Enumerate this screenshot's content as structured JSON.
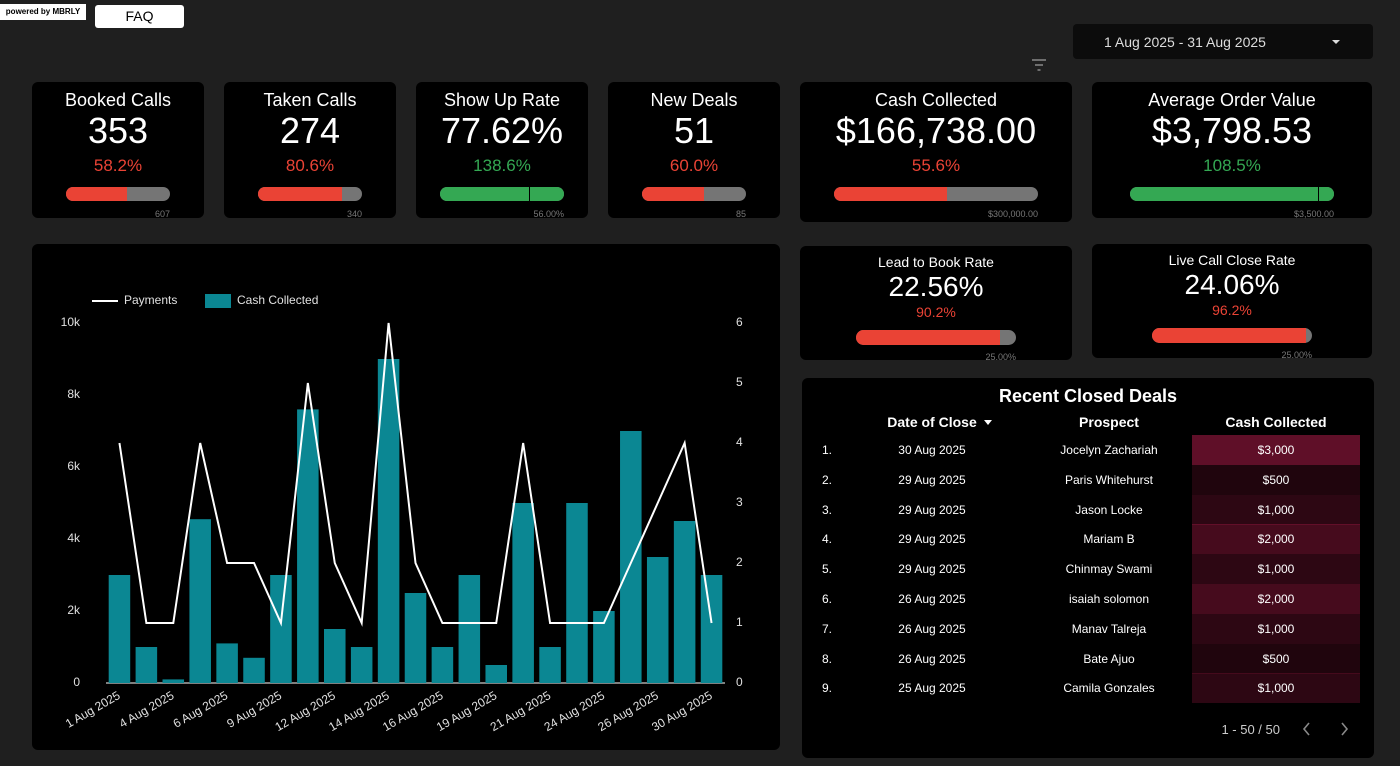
{
  "header": {
    "powered_by": "powered by MBRLY",
    "faq": "FAQ",
    "date_range": "1 Aug 2025 - 31 Aug 2025"
  },
  "kpis": [
    {
      "title": "Booked Calls",
      "value": "353",
      "change": 58.2,
      "change_label": "58.2%",
      "target": "607",
      "color": "#ea4335"
    },
    {
      "title": "Taken Calls",
      "value": "274",
      "change": 80.6,
      "change_label": "80.6%",
      "target": "340",
      "color": "#ea4335"
    },
    {
      "title": "Show Up Rate",
      "value": "77.62%",
      "change": 138.6,
      "change_label": "138.6%",
      "target": "56.00%",
      "color": "#34a853"
    },
    {
      "title": "New Deals",
      "value": "51",
      "change": 60.0,
      "change_label": "60.0%",
      "target": "85",
      "color": "#ea4335"
    },
    {
      "title": "Cash Collected",
      "value": "$166,738.00",
      "change": 55.6,
      "change_label": "55.6%",
      "target": "$300,000.00",
      "color": "#ea4335"
    },
    {
      "title": "Average Order Value",
      "value": "$3,798.53",
      "change": 108.5,
      "change_label": "108.5%",
      "target": "$3,500.00",
      "color": "#34a853"
    },
    {
      "title": "Lead to Book Rate",
      "value": "22.56%",
      "change": 90.2,
      "change_label": "90.2%",
      "target": "25.00%",
      "color": "#ea4335"
    },
    {
      "title": "Live Call Close Rate",
      "value": "24.06%",
      "change": 96.2,
      "change_label": "96.2%",
      "target": "25.00%",
      "color": "#ea4335"
    }
  ],
  "chart_data": {
    "type": "bar",
    "categories": [
      "1 Aug 2025",
      null,
      "4 Aug 2025",
      null,
      "6 Aug 2025",
      null,
      "9 Aug 2025",
      null,
      "12 Aug 2025",
      null,
      "14 Aug 2025",
      null,
      "16 Aug 2025",
      null,
      "19 Aug 2025",
      null,
      "21 Aug 2025",
      null,
      "24 Aug 2025",
      null,
      "26 Aug 2025",
      null,
      "30 Aug 2025"
    ],
    "series": [
      {
        "name": "Payments",
        "type": "line",
        "axis": "y2",
        "color": "#ffffff",
        "values": [
          4,
          1,
          1,
          4,
          2,
          2,
          1,
          5,
          2,
          1,
          6,
          2,
          1,
          1,
          1,
          4,
          1,
          1,
          1,
          2,
          3,
          4,
          1
        ]
      },
      {
        "name": "Cash Collected",
        "type": "bar",
        "color": "#0b8793",
        "values": [
          3000,
          1000,
          100,
          4550,
          1100,
          700,
          3000,
          7600,
          1500,
          1000,
          9000,
          2500,
          1000,
          3000,
          500,
          5000,
          1000,
          5000,
          2000,
          7000,
          3500,
          4500,
          3000
        ]
      }
    ],
    "ylim": [
      0,
      10000
    ],
    "yticks": [
      0,
      {
        "value": 2000,
        "label": "2k"
      },
      {
        "value": 4000,
        "label": "4k"
      },
      {
        "value": 6000,
        "label": "6k"
      },
      {
        "value": 8000,
        "label": "8k"
      },
      {
        "value": 10000,
        "label": "10k"
      }
    ],
    "y2lim": [
      0,
      6
    ],
    "y2ticks": [
      0,
      1,
      2,
      3,
      4,
      5,
      6
    ]
  },
  "table": {
    "title": "Recent Closed Deals",
    "columns": [
      "Date of Close",
      "Prospect",
      "Cash Collected"
    ],
    "rows": [
      {
        "number": "1.",
        "date": "30 Aug 2025",
        "prospect": "Jocelyn Zachariah",
        "cash": 3000,
        "cash_label": "$3,000"
      },
      {
        "number": "2.",
        "date": "29 Aug 2025",
        "prospect": "Paris Whitehurst",
        "cash": 500,
        "cash_label": "$500"
      },
      {
        "number": "3.",
        "date": "29 Aug 2025",
        "prospect": "Jason Locke",
        "cash": 1000,
        "cash_label": "$1,000"
      },
      {
        "number": "4.",
        "date": "29 Aug 2025",
        "prospect": "Mariam B",
        "cash": 2000,
        "cash_label": "$2,000"
      },
      {
        "number": "5.",
        "date": "29 Aug 2025",
        "prospect": "Chinmay Swami",
        "cash": 1000,
        "cash_label": "$1,000"
      },
      {
        "number": "6.",
        "date": "26 Aug 2025",
        "prospect": "isaiah solomon",
        "cash": 2000,
        "cash_label": "$2,000"
      },
      {
        "number": "7.",
        "date": "26 Aug 2025",
        "prospect": "Manav Talreja",
        "cash": 1000,
        "cash_label": "$1,000"
      },
      {
        "number": "8.",
        "date": "26 Aug 2025",
        "prospect": "Bate Ajuo",
        "cash": 500,
        "cash_label": "$500"
      },
      {
        "number": "9.",
        "date": "25 Aug 2025",
        "prospect": "Camila Gonzales",
        "cash": 1000,
        "cash_label": "$1,000"
      }
    ],
    "pagination": "1 - 50 / 50"
  }
}
